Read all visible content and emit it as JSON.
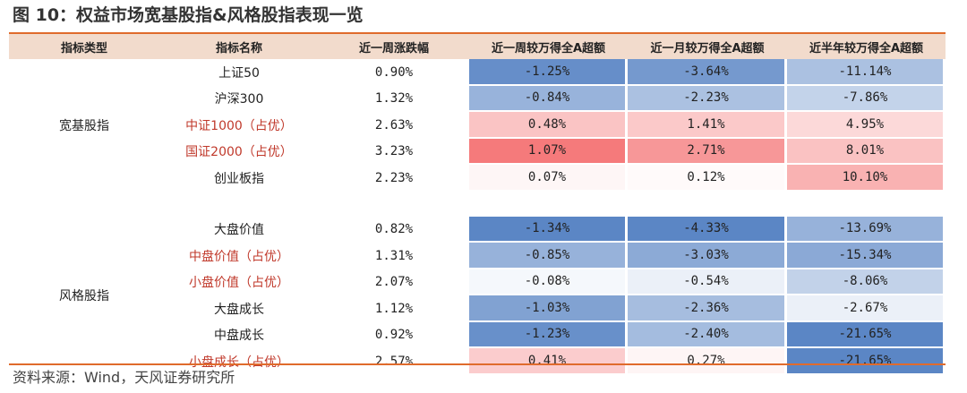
{
  "figure": {
    "title": "图 10：权益市场宽基股指&风格股指表现一览",
    "source": "资料来源：Wind，天风证券研究所"
  },
  "chart_data": {
    "type": "table",
    "title": "图 10：权益市场宽基股指&风格股指表现一览",
    "columns": [
      "指标类型",
      "指标名称",
      "近一周涨跌幅",
      "近一周较万得全A超额",
      "近一月较万得全A超额",
      "近半年较万得全A超额"
    ],
    "groups": [
      {
        "category": "宽基股指",
        "rows": [
          {
            "name": "上证50",
            "highlight": false,
            "week": "0.90%",
            "ex_week": "-1.25%",
            "ex_month": "-3.64%",
            "ex_half": "-11.14%"
          },
          {
            "name": "沪深300",
            "highlight": false,
            "week": "1.32%",
            "ex_week": "-0.84%",
            "ex_month": "-2.23%",
            "ex_half": "-7.86%"
          },
          {
            "name": "中证1000（占优）",
            "highlight": true,
            "week": "2.63%",
            "ex_week": "0.48%",
            "ex_month": "1.41%",
            "ex_half": "4.95%"
          },
          {
            "name": "国证2000（占优）",
            "highlight": true,
            "week": "3.23%",
            "ex_week": "1.07%",
            "ex_month": "2.71%",
            "ex_half": "8.01%"
          },
          {
            "name": "创业板指",
            "highlight": false,
            "week": "2.23%",
            "ex_week": "0.07%",
            "ex_month": "0.12%",
            "ex_half": "10.10%"
          }
        ]
      },
      {
        "category": "风格股指",
        "rows": [
          {
            "name": "大盘价值",
            "highlight": false,
            "week": "0.82%",
            "ex_week": "-1.34%",
            "ex_month": "-4.33%",
            "ex_half": "-13.69%"
          },
          {
            "name": "中盘价值（占优）",
            "highlight": true,
            "week": "1.31%",
            "ex_week": "-0.85%",
            "ex_month": "-3.03%",
            "ex_half": "-15.34%"
          },
          {
            "name": "小盘价值（占优）",
            "highlight": true,
            "week": "2.07%",
            "ex_week": "-0.08%",
            "ex_month": "-0.54%",
            "ex_half": "-8.06%"
          },
          {
            "name": "大盘成长",
            "highlight": false,
            "week": "1.12%",
            "ex_week": "-1.03%",
            "ex_month": "-2.36%",
            "ex_half": "-2.67%"
          },
          {
            "name": "中盘成长",
            "highlight": false,
            "week": "0.92%",
            "ex_week": "-1.23%",
            "ex_month": "-2.40%",
            "ex_half": "-21.65%"
          },
          {
            "name": "小盘成长（占优）",
            "highlight": true,
            "week": "2.57%",
            "ex_week": "0.41%",
            "ex_month": "0.27%",
            "ex_half": "-21.65%"
          }
        ]
      }
    ],
    "colors": {
      "negative": "#5b86c5",
      "positive": "#f2595a",
      "neutral": "#ffffff",
      "highlight_text": "#c0392b",
      "header_bg": "#f2dbcc"
    }
  }
}
